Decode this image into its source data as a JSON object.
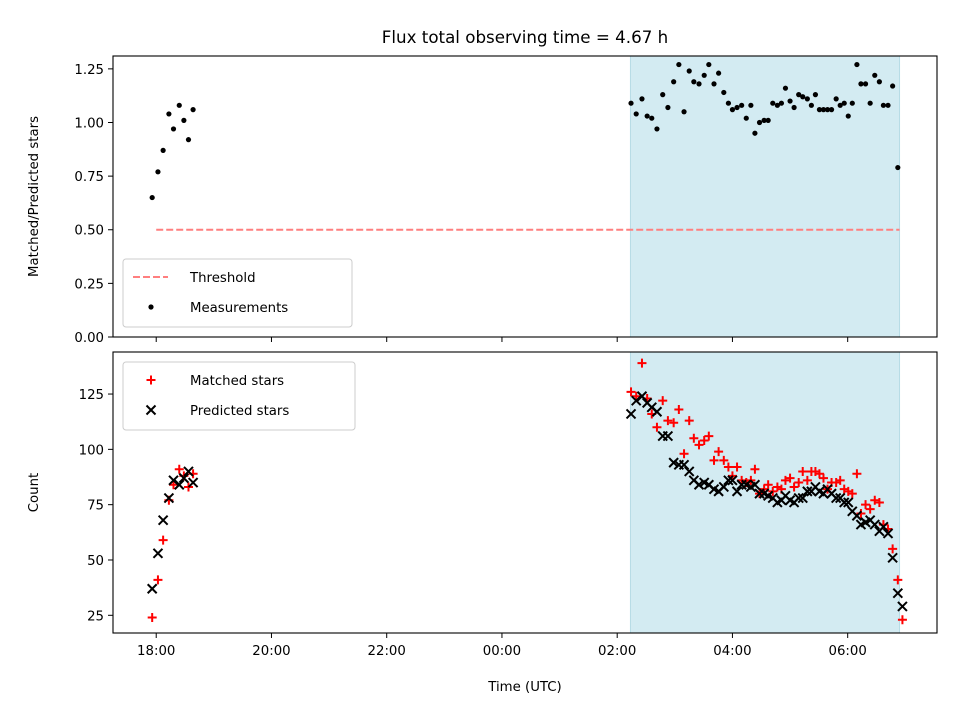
{
  "chart_data": {
    "title": "Flux total observing time = 4.67 h",
    "xlabel": "Time (UTC)",
    "x_unit": "hours after 00:00 UTC",
    "xlim": [
      -6.75,
      7.55
    ],
    "xticks": [
      {
        "value": -6,
        "label": "18:00"
      },
      {
        "value": -4,
        "label": "20:00"
      },
      {
        "value": -2,
        "label": "22:00"
      },
      {
        "value": 0,
        "label": "00:00"
      },
      {
        "value": 2,
        "label": "02:00"
      },
      {
        "value": 4,
        "label": "04:00"
      },
      {
        "value": 6,
        "label": "06:00"
      }
    ],
    "shaded_interval": [
      2.23,
      6.9
    ],
    "shade_color": "#d3ebf2",
    "panels": [
      {
        "type": "scatter",
        "ylabel": "Matched/Predicted stars",
        "ylim": [
          0,
          1.31
        ],
        "yticks": [
          "0.00",
          "0.25",
          "0.50",
          "0.75",
          "1.00",
          "1.25"
        ],
        "legend_placement": "lower-left",
        "series": [
          {
            "name": "Threshold",
            "kind": "dashed-line",
            "color": "#ff7f7f",
            "y": 0.5,
            "x_range": [
              -6.0,
              6.9
            ]
          },
          {
            "name": "Measurements",
            "kind": "dot",
            "color": "#000000",
            "points": [
              [
                -6.07,
                0.65
              ],
              [
                -5.97,
                0.77
              ],
              [
                -5.88,
                0.87
              ],
              [
                -5.78,
                1.04
              ],
              [
                -5.7,
                0.97
              ],
              [
                -5.6,
                1.08
              ],
              [
                -5.52,
                1.01
              ],
              [
                -5.44,
                0.92
              ],
              [
                -5.36,
                1.06
              ],
              [
                2.24,
                1.09
              ],
              [
                2.33,
                1.04
              ],
              [
                2.43,
                1.11
              ],
              [
                2.52,
                1.03
              ],
              [
                2.6,
                1.02
              ],
              [
                2.69,
                0.97
              ],
              [
                2.79,
                1.13
              ],
              [
                2.88,
                1.07
              ],
              [
                2.98,
                1.19
              ],
              [
                3.07,
                1.27
              ],
              [
                3.16,
                1.05
              ],
              [
                3.25,
                1.24
              ],
              [
                3.33,
                1.19
              ],
              [
                3.42,
                1.18
              ],
              [
                3.51,
                1.22
              ],
              [
                3.59,
                1.27
              ],
              [
                3.68,
                1.18
              ],
              [
                3.76,
                1.23
              ],
              [
                3.85,
                1.14
              ],
              [
                3.93,
                1.09
              ],
              [
                4.0,
                1.06
              ],
              [
                4.08,
                1.07
              ],
              [
                4.16,
                1.08
              ],
              [
                4.24,
                1.02
              ],
              [
                4.32,
                1.08
              ],
              [
                4.39,
                0.95
              ],
              [
                4.47,
                1.0
              ],
              [
                4.55,
                1.01
              ],
              [
                4.62,
                1.01
              ],
              [
                4.7,
                1.09
              ],
              [
                4.78,
                1.08
              ],
              [
                4.85,
                1.09
              ],
              [
                4.92,
                1.16
              ],
              [
                5.0,
                1.1
              ],
              [
                5.07,
                1.07
              ],
              [
                5.15,
                1.13
              ],
              [
                5.22,
                1.12
              ],
              [
                5.3,
                1.11
              ],
              [
                5.37,
                1.08
              ],
              [
                5.44,
                1.13
              ],
              [
                5.51,
                1.06
              ],
              [
                5.58,
                1.06
              ],
              [
                5.65,
                1.06
              ],
              [
                5.72,
                1.06
              ],
              [
                5.8,
                1.11
              ],
              [
                5.87,
                1.08
              ],
              [
                5.94,
                1.09
              ],
              [
                6.01,
                1.03
              ],
              [
                6.08,
                1.09
              ],
              [
                6.16,
                1.27
              ],
              [
                6.23,
                1.18
              ],
              [
                6.31,
                1.18
              ],
              [
                6.39,
                1.09
              ],
              [
                6.47,
                1.22
              ],
              [
                6.55,
                1.19
              ],
              [
                6.62,
                1.08
              ],
              [
                6.7,
                1.08
              ],
              [
                6.78,
                1.17
              ],
              [
                6.87,
                0.79
              ]
            ]
          }
        ]
      },
      {
        "type": "scatter",
        "ylabel": "Count",
        "ylim": [
          17,
          144
        ],
        "yticks": [
          "25",
          "50",
          "75",
          "100",
          "125"
        ],
        "legend_placement": "upper-left",
        "series": [
          {
            "name": "Matched stars",
            "kind": "plus",
            "color": "#ff0000",
            "points": [
              [
                -6.07,
                24
              ],
              [
                -5.97,
                41
              ],
              [
                -5.88,
                59
              ],
              [
                -5.78,
                77
              ],
              [
                -5.7,
                84
              ],
              [
                -5.6,
                91
              ],
              [
                -5.52,
                88
              ],
              [
                -5.44,
                83
              ],
              [
                -5.36,
                89
              ],
              [
                2.24,
                126
              ],
              [
                2.33,
                124
              ],
              [
                2.43,
                139
              ],
              [
                2.52,
                123
              ],
              [
                2.6,
                116
              ],
              [
                2.69,
                110
              ],
              [
                2.79,
                122
              ],
              [
                2.88,
                113
              ],
              [
                2.98,
                112
              ],
              [
                3.07,
                118
              ],
              [
                3.16,
                98
              ],
              [
                3.25,
                113
              ],
              [
                3.33,
                105
              ],
              [
                3.42,
                102
              ],
              [
                3.51,
                104
              ],
              [
                3.59,
                106
              ],
              [
                3.68,
                95
              ],
              [
                3.76,
                99
              ],
              [
                3.85,
                95
              ],
              [
                3.93,
                92
              ],
              [
                4.0,
                88
              ],
              [
                4.08,
                92
              ],
              [
                4.16,
                86
              ],
              [
                4.24,
                85
              ],
              [
                4.32,
                86
              ],
              [
                4.39,
                91
              ],
              [
                4.47,
                80
              ],
              [
                4.55,
                82
              ],
              [
                4.62,
                84
              ],
              [
                4.7,
                81
              ],
              [
                4.78,
                83
              ],
              [
                4.85,
                82
              ],
              [
                4.92,
                86
              ],
              [
                5.0,
                87
              ],
              [
                5.07,
                83
              ],
              [
                5.15,
                85
              ],
              [
                5.22,
                90
              ],
              [
                5.3,
                86
              ],
              [
                5.37,
                90
              ],
              [
                5.44,
                90
              ],
              [
                5.51,
                89
              ],
              [
                5.58,
                87
              ],
              [
                5.65,
                82
              ],
              [
                5.72,
                85
              ],
              [
                5.8,
                85
              ],
              [
                5.87,
                86
              ],
              [
                5.94,
                82
              ],
              [
                6.01,
                81
              ],
              [
                6.08,
                80
              ],
              [
                6.16,
                89
              ],
              [
                6.23,
                71
              ],
              [
                6.31,
                75
              ],
              [
                6.39,
                73
              ],
              [
                6.47,
                77
              ],
              [
                6.55,
                76
              ],
              [
                6.62,
                66
              ],
              [
                6.7,
                64
              ],
              [
                6.78,
                55
              ],
              [
                6.87,
                41
              ],
              [
                6.95,
                23
              ]
            ]
          },
          {
            "name": "Predicted stars",
            "kind": "cross",
            "color": "#000000",
            "points": [
              [
                -6.07,
                37
              ],
              [
                -5.97,
                53
              ],
              [
                -5.88,
                68
              ],
              [
                -5.78,
                78
              ],
              [
                -5.7,
                86
              ],
              [
                -5.6,
                84
              ],
              [
                -5.52,
                87
              ],
              [
                -5.44,
                90
              ],
              [
                -5.36,
                85
              ],
              [
                2.24,
                116
              ],
              [
                2.33,
                122
              ],
              [
                2.43,
                124
              ],
              [
                2.52,
                121
              ],
              [
                2.6,
                119
              ],
              [
                2.69,
                117
              ],
              [
                2.79,
                106
              ],
              [
                2.88,
                106
              ],
              [
                2.98,
                94
              ],
              [
                3.07,
                93
              ],
              [
                3.16,
                93
              ],
              [
                3.25,
                90
              ],
              [
                3.33,
                86
              ],
              [
                3.42,
                84
              ],
              [
                3.51,
                85
              ],
              [
                3.59,
                84
              ],
              [
                3.68,
                82
              ],
              [
                3.76,
                81
              ],
              [
                3.85,
                83
              ],
              [
                3.93,
                86
              ],
              [
                4.0,
                86
              ],
              [
                4.08,
                81
              ],
              [
                4.16,
                84
              ],
              [
                4.24,
                84
              ],
              [
                4.32,
                83
              ],
              [
                4.39,
                84
              ],
              [
                4.47,
                80
              ],
              [
                4.55,
                80
              ],
              [
                4.62,
                79
              ],
              [
                4.7,
                78
              ],
              [
                4.78,
                76
              ],
              [
                4.85,
                77
              ],
              [
                4.92,
                79
              ],
              [
                5.0,
                77
              ],
              [
                5.07,
                76
              ],
              [
                5.15,
                78
              ],
              [
                5.22,
                78
              ],
              [
                5.3,
                81
              ],
              [
                5.37,
                81
              ],
              [
                5.44,
                83
              ],
              [
                5.51,
                81
              ],
              [
                5.58,
                80
              ],
              [
                5.65,
                82
              ],
              [
                5.72,
                80
              ],
              [
                5.8,
                78
              ],
              [
                5.87,
                78
              ],
              [
                5.94,
                76
              ],
              [
                6.01,
                76
              ],
              [
                6.08,
                72
              ],
              [
                6.16,
                70
              ],
              [
                6.23,
                66
              ],
              [
                6.31,
                67
              ],
              [
                6.39,
                68
              ],
              [
                6.47,
                66
              ],
              [
                6.55,
                63
              ],
              [
                6.62,
                65
              ],
              [
                6.7,
                62
              ],
              [
                6.78,
                51
              ],
              [
                6.87,
                35
              ],
              [
                6.95,
                29
              ]
            ]
          }
        ]
      }
    ]
  }
}
